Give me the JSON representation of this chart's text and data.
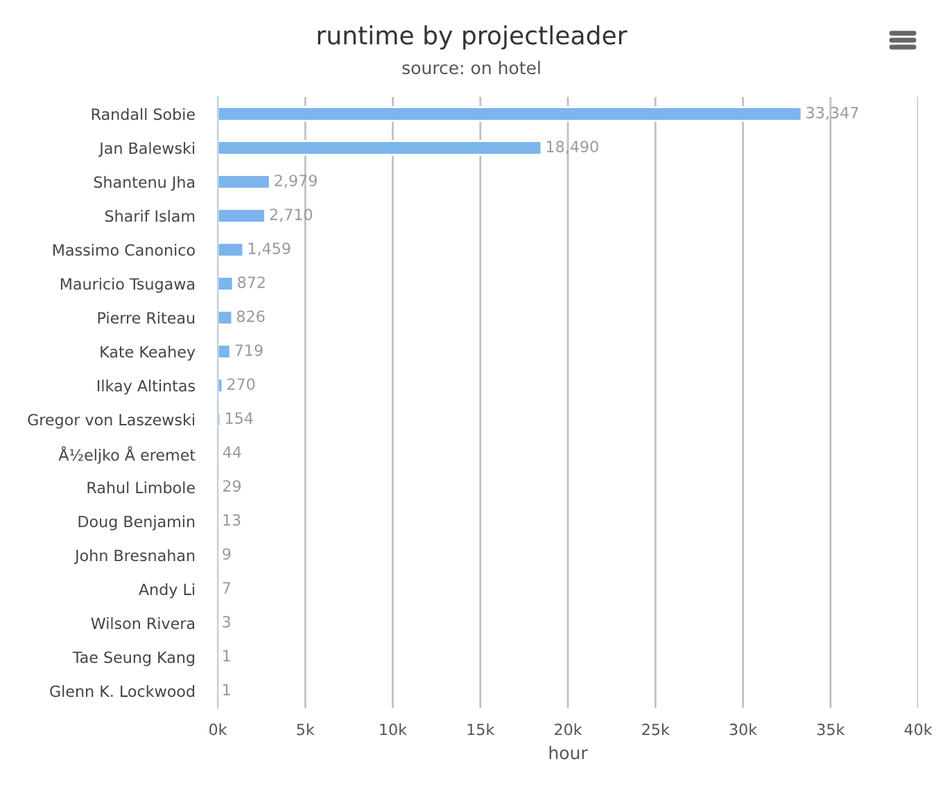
{
  "chart_data": {
    "type": "bar",
    "orientation": "horizontal",
    "title": "runtime by projectleader",
    "subtitle": "source: on hotel",
    "xlabel": "hour",
    "categories": [
      "Randall Sobie",
      "Jan Balewski",
      "Shantenu Jha",
      "Sharif Islam",
      "Massimo Canonico",
      "Mauricio Tsugawa",
      "Pierre Riteau",
      "Kate Keahey",
      "Ilkay Altintas",
      "Gregor von Laszewski",
      "Å½eljko Å eremet",
      "Rahul Limbole",
      "Doug Benjamin",
      "John Bresnahan",
      "Andy Li",
      "Wilson Rivera",
      "Tae Seung Kang",
      "Glenn K. Lockwood"
    ],
    "values": [
      33347,
      18490,
      2979,
      2710,
      1459,
      872,
      826,
      719,
      270,
      154,
      44,
      29,
      13,
      9,
      7,
      3,
      1,
      1
    ],
    "value_labels": [
      "33,347",
      "18,490",
      "2,979",
      "2,710",
      "1,459",
      "872",
      "826",
      "719",
      "270",
      "154",
      "44",
      "29",
      "13",
      "9",
      "7",
      "3",
      "1",
      "1"
    ],
    "color": "#7cb5ec",
    "xlim": [
      0,
      40000
    ],
    "xticks": [
      {
        "value": 0,
        "label": "0k"
      },
      {
        "value": 5000,
        "label": "5k"
      },
      {
        "value": 10000,
        "label": "10k"
      },
      {
        "value": 15000,
        "label": "15k"
      },
      {
        "value": 20000,
        "label": "20k"
      },
      {
        "value": 25000,
        "label": "25k"
      },
      {
        "value": 30000,
        "label": "30k"
      },
      {
        "value": 35000,
        "label": "35k"
      },
      {
        "value": 40000,
        "label": "40k"
      }
    ],
    "grid": "x",
    "legend": false
  }
}
